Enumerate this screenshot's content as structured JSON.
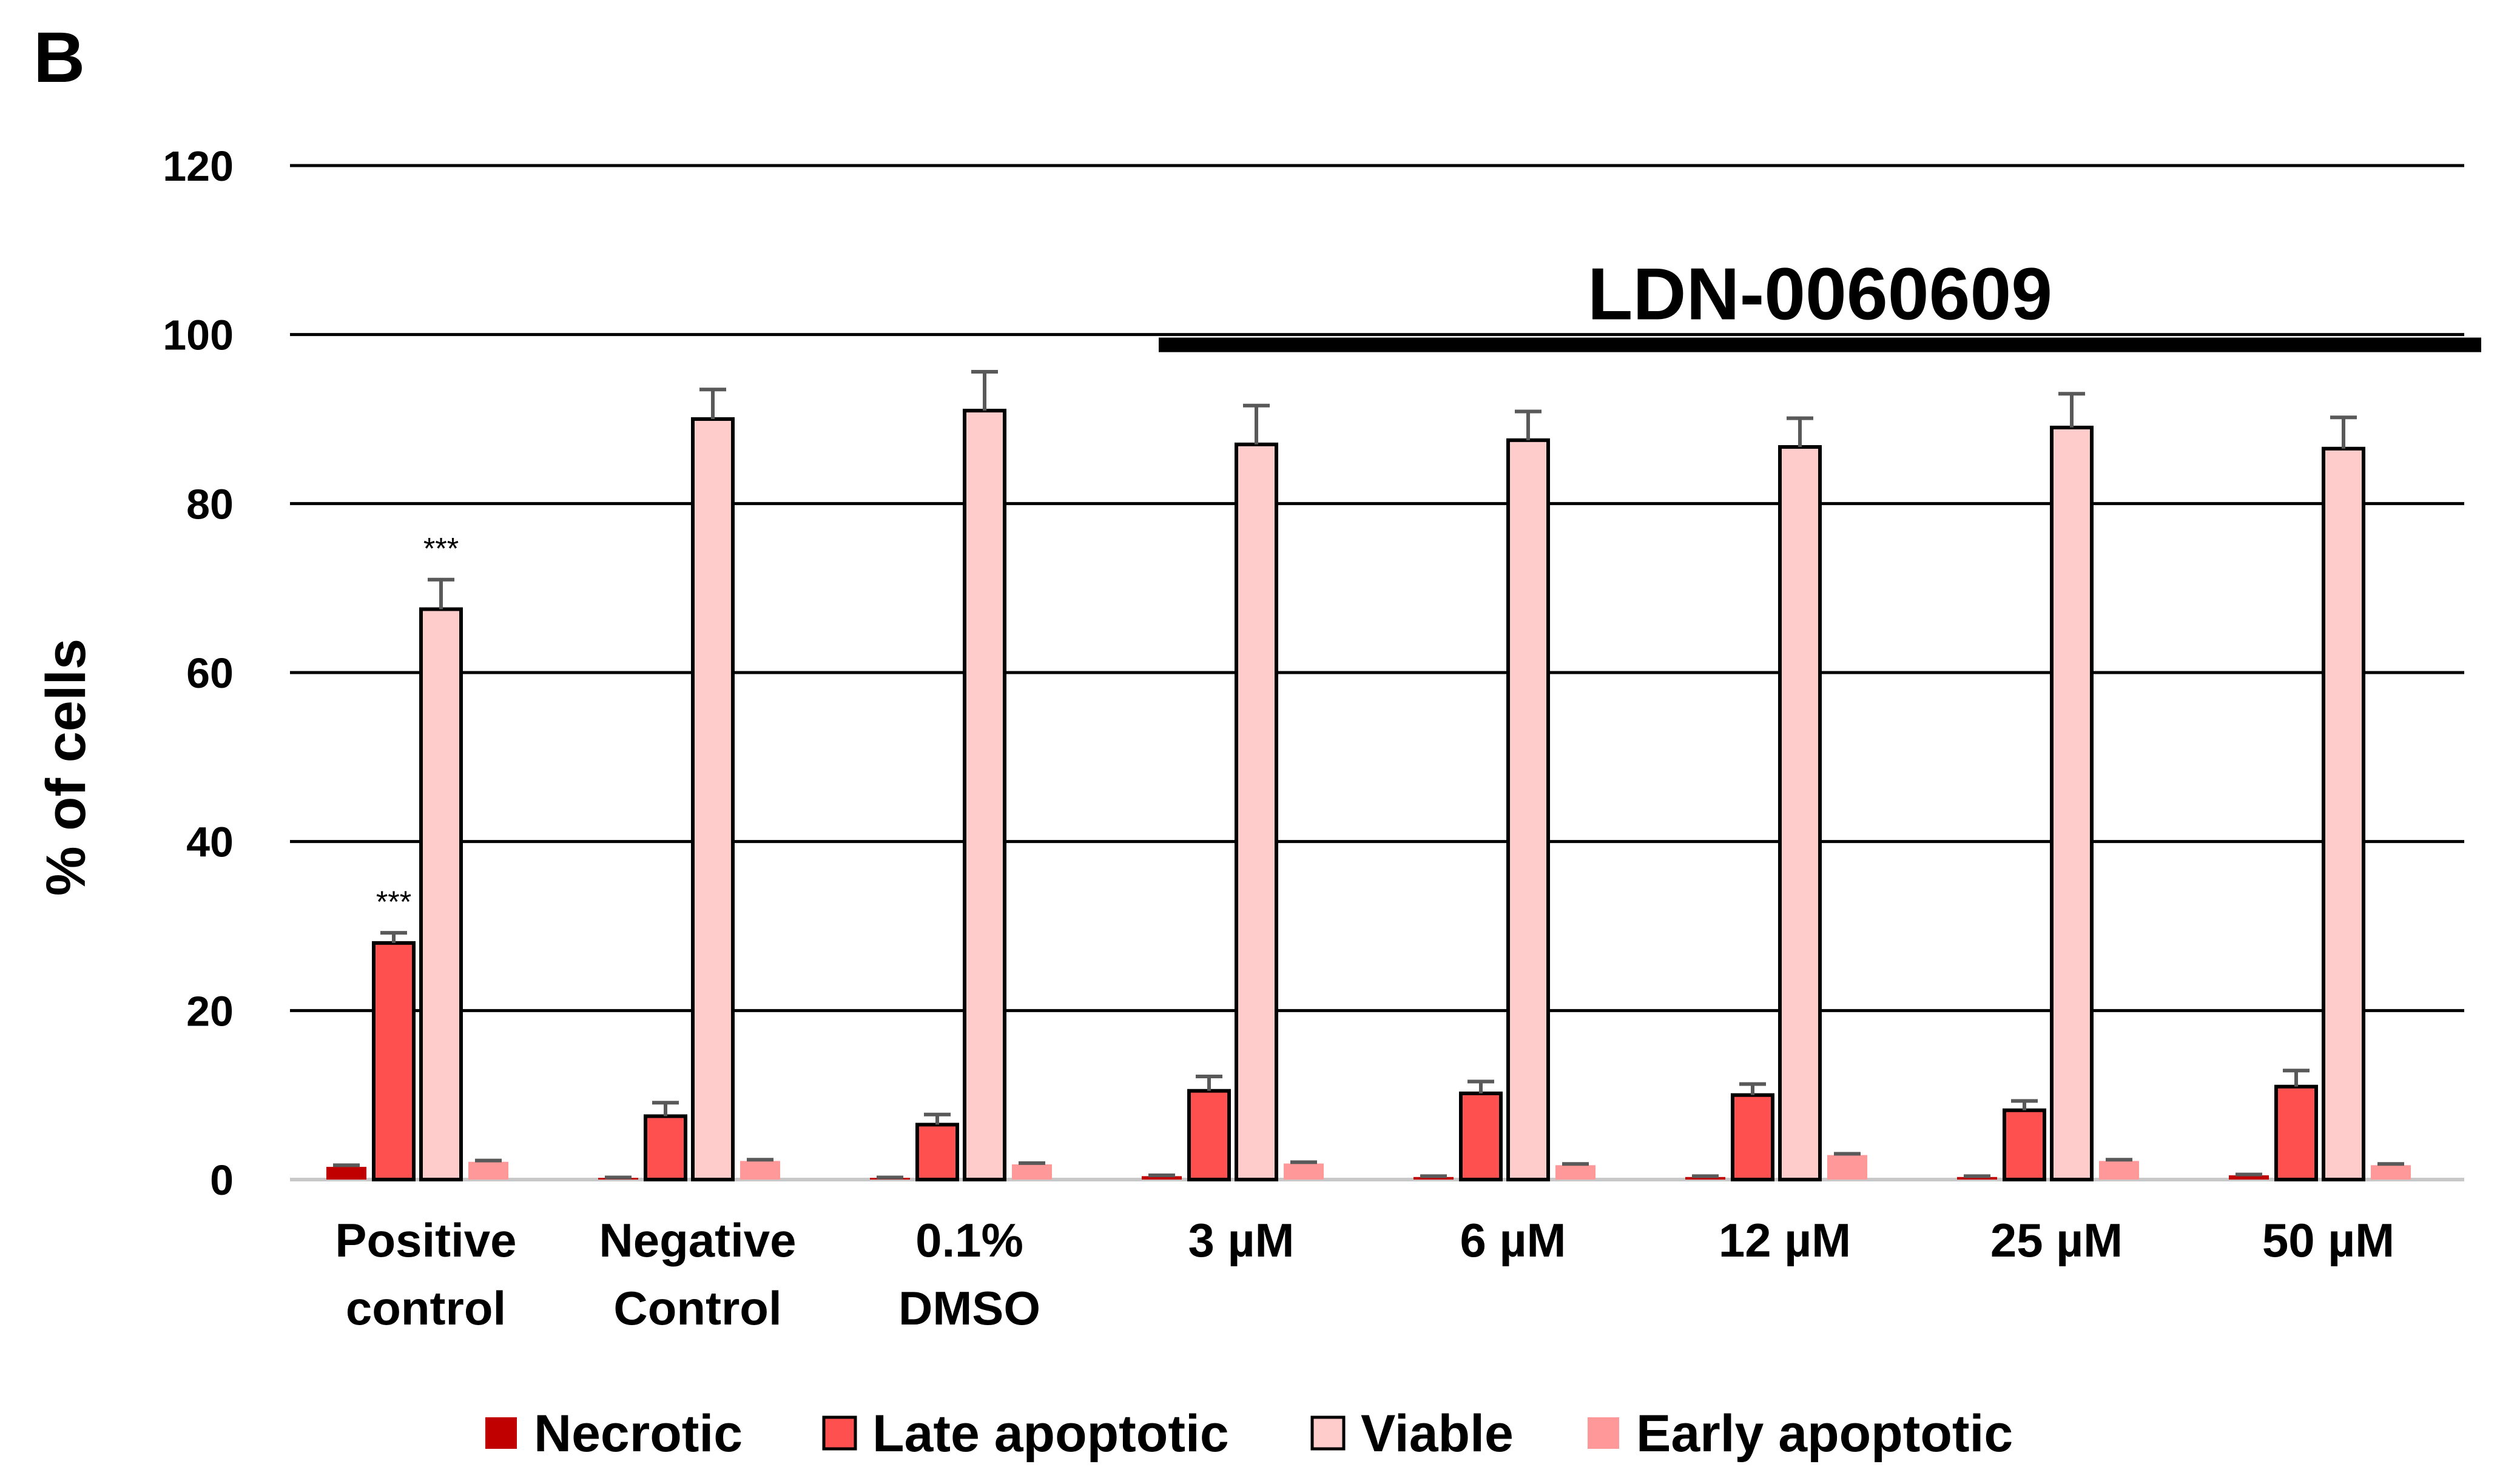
{
  "panel_label": "B",
  "colors": {
    "necrotic": "#C00000",
    "late_apoptotic": "#FF5050",
    "viable": "#FFCCCC",
    "early_apoptotic": "#FF9999",
    "grid": "#000000",
    "error_bar": "#595959"
  },
  "chart_data": {
    "type": "bar",
    "ylabel": "% of cells",
    "ylim": [
      0,
      120
    ],
    "yticks": [
      "0",
      "20",
      "40",
      "60",
      "80",
      "100",
      "120"
    ],
    "grid": true,
    "legend_position": "bottom",
    "categories": [
      [
        "Positive",
        "control"
      ],
      [
        "Negative",
        "Control"
      ],
      [
        "0.1%",
        "DMSO"
      ],
      [
        "3 µM"
      ],
      [
        "6 µM"
      ],
      [
        "12 µM"
      ],
      [
        "25 µM"
      ],
      [
        "50 µM"
      ]
    ],
    "series": [
      {
        "name": "Necrotic",
        "color_key": "necrotic",
        "values": [
          1.5,
          0.2,
          0.2,
          0.4,
          0.3,
          0.3,
          0.3,
          0.5
        ],
        "errors": [
          0.2,
          0.05,
          0.05,
          0.1,
          0.1,
          0.1,
          0.1,
          0.1
        ]
      },
      {
        "name": "Late apoptotic",
        "color_key": "late_apoptotic",
        "values": [
          28,
          7.5,
          6.5,
          10.5,
          10.2,
          10,
          8.2,
          11
        ],
        "errors": [
          1.2,
          1.6,
          1.2,
          1.7,
          1.4,
          1.3,
          1.1,
          1.9
        ]
      },
      {
        "name": "Viable",
        "color_key": "viable",
        "values": [
          67.5,
          90,
          91,
          87,
          87.5,
          86.7,
          89,
          86.5
        ],
        "errors": [
          3.5,
          3.5,
          4.6,
          4.6,
          3.4,
          3.4,
          4,
          3.7
        ]
      },
      {
        "name": "Early apoptotic",
        "color_key": "early_apoptotic",
        "values": [
          2.1,
          2.2,
          1.8,
          1.9,
          1.7,
          2.9,
          2.2,
          1.7
        ],
        "errors": [
          0.15,
          0.15,
          0.15,
          0.15,
          0.15,
          0.15,
          0.15,
          0.15
        ]
      }
    ],
    "bracket": {
      "label": "LDN-0060609",
      "y_value": 99,
      "from_category": 3,
      "to_category": 7
    },
    "annotations": [
      {
        "text": "***",
        "category": 0,
        "series": 1
      },
      {
        "text": "***",
        "category": 0,
        "series": 2
      }
    ]
  }
}
